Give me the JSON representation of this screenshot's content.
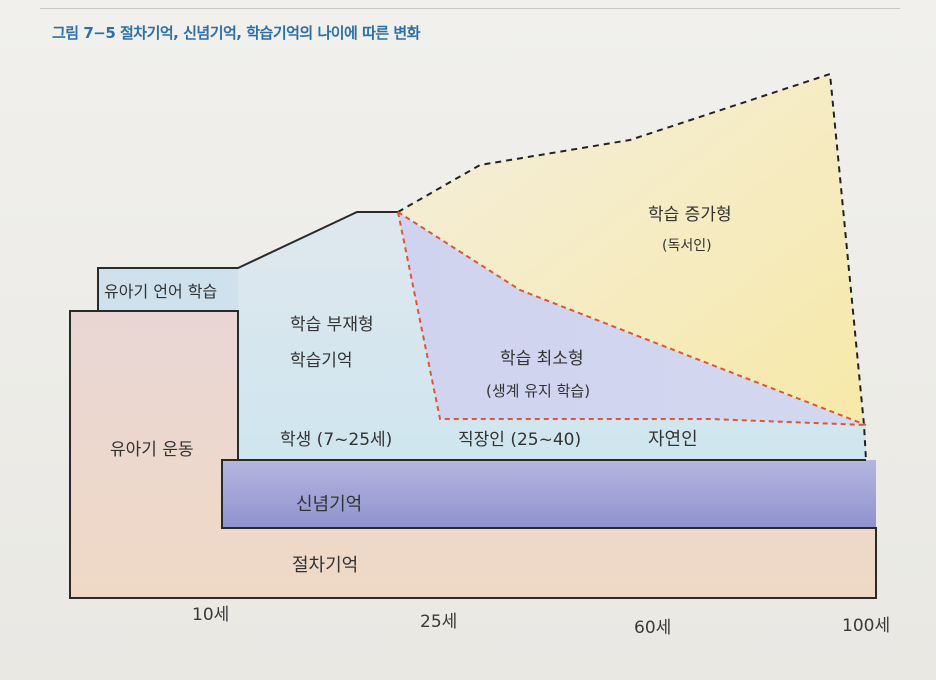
{
  "caption": "그림 7−5 절차기억, 신념기억, 학습기억의 나이에 따른 변화",
  "regions": {
    "infant_language": "유아기 언어 학습",
    "infant_motor": "유아기 운동",
    "learning_absent": "학습 부재형",
    "learning_memory": "학습기억",
    "learning_minimal": "학습 최소형",
    "learning_minimal_note": "(생계 유지 학습)",
    "learning_increasing": "학습 증가형",
    "learning_increasing_note": "(독서인)",
    "belief_memory": "신념기억",
    "procedural_memory": "절차기억"
  },
  "stages": {
    "student": "학생 (7~25세)",
    "worker": "직장인 (25~40)",
    "natural": "자연인"
  },
  "axis_ticks": [
    "10세",
    "25세",
    "60세",
    "100세"
  ],
  "colors": {
    "caption": "#2e6fa7",
    "dashed_red": "#d9573a",
    "dashed_black": "#222222"
  }
}
